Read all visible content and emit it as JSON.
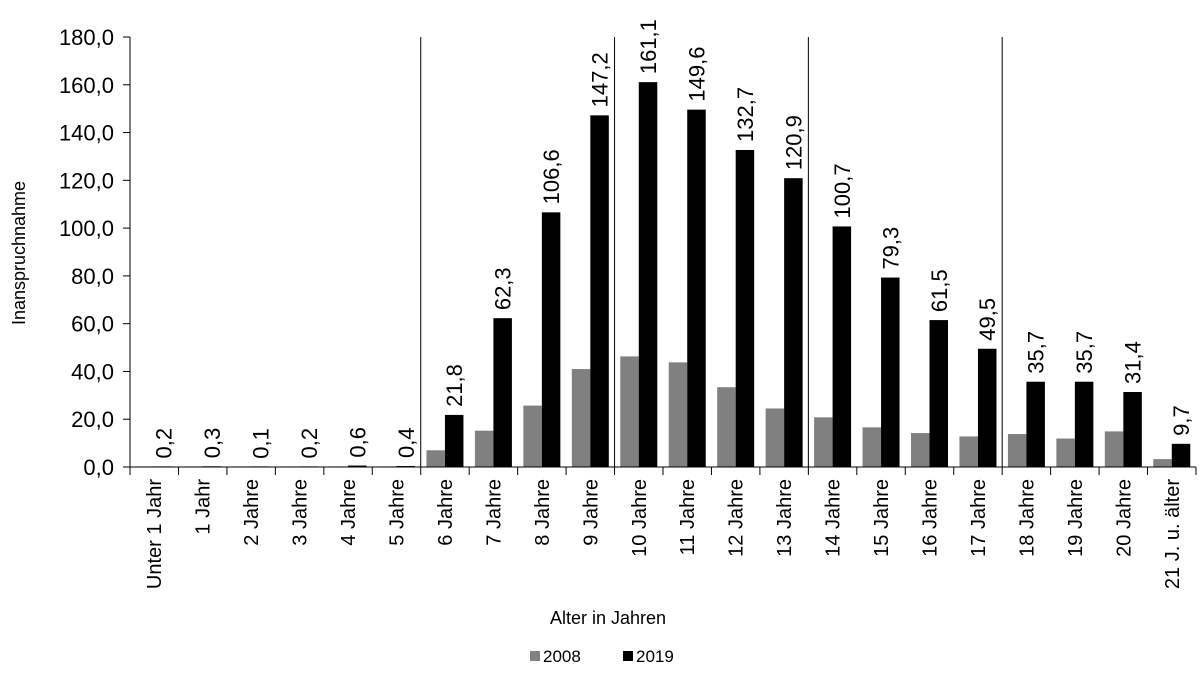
{
  "chart_data": {
    "type": "bar",
    "title": "",
    "xlabel": "Alter in Jahren",
    "ylabel": "Inanspruchnahme",
    "ylim": [
      0,
      180
    ],
    "ytick_step": 20,
    "ytick_labels": [
      "0,0",
      "20,0",
      "40,0",
      "60,0",
      "80,0",
      "100,0",
      "120,0",
      "140,0",
      "160,0",
      "180,0"
    ],
    "categories": [
      "Unter 1 Jahr",
      "1 Jahr",
      "2 Jahre",
      "3 Jahre",
      "4 Jahre",
      "5 Jahre",
      "6 Jahre",
      "7 Jahre",
      "8 Jahre",
      "9 Jahre",
      "10 Jahre",
      "11 Jahre",
      "12 Jahre",
      "13 Jahre",
      "14 Jahre",
      "15 Jahre",
      "16 Jahre",
      "17 Jahre",
      "18 Jahre",
      "19 Jahre",
      "20 Jahre",
      "21 J. u. älter"
    ],
    "series": [
      {
        "name": "2008",
        "color": "#808080",
        "values": [
          0.2,
          0.1,
          0.1,
          0.1,
          0.2,
          0.2,
          7.0,
          15.2,
          25.7,
          41.0,
          46.3,
          43.8,
          33.4,
          24.5,
          20.8,
          16.6,
          14.2,
          12.8,
          13.8,
          11.9,
          14.9,
          3.3
        ]
      },
      {
        "name": "2019",
        "color": "#000000",
        "values": [
          0.2,
          0.3,
          0.1,
          0.2,
          0.6,
          0.4,
          21.8,
          62.3,
          106.6,
          147.2,
          161.1,
          149.6,
          132.7,
          120.9,
          100.7,
          79.3,
          61.5,
          49.5,
          35.7,
          35.7,
          31.4,
          9.7
        ],
        "labels": [
          "0,2",
          "0,3",
          "0,1",
          "0,2",
          "0,6",
          "0,4",
          "21,8",
          "62,3",
          "106,6",
          "147,2",
          "161,1",
          "149,6",
          "132,7",
          "120,9",
          "100,7",
          "79,3",
          "61,5",
          "49,5",
          "35,7",
          "35,7",
          "31,4",
          "9,7"
        ]
      }
    ],
    "group_separators_after_index": [
      5,
      9,
      13,
      17
    ],
    "grid": false,
    "legend": {
      "position": "bottom-center",
      "entries": [
        "2008",
        "2019"
      ]
    }
  }
}
